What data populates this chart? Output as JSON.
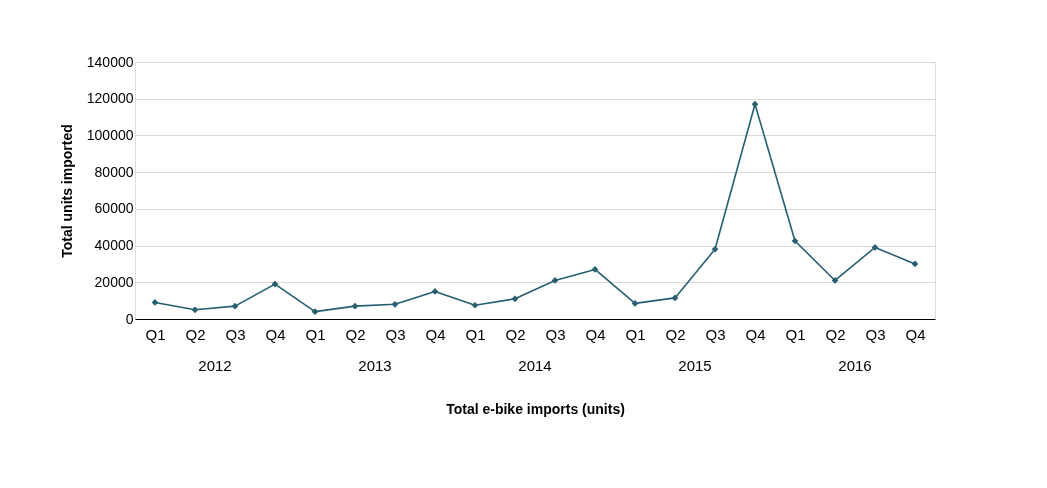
{
  "chart_data": {
    "type": "line",
    "xlabel": "Total e-bike imports (units)",
    "ylabel": "Total units imported",
    "categories": [
      "Q1",
      "Q2",
      "Q3",
      "Q4",
      "Q1",
      "Q2",
      "Q3",
      "Q4",
      "Q1",
      "Q2",
      "Q3",
      "Q4",
      "Q1",
      "Q2",
      "Q3",
      "Q4",
      "Q1",
      "Q2",
      "Q3",
      "Q4"
    ],
    "series": [
      {
        "color": "#265f6f",
        "values": [
          9000,
          5000,
          7000,
          19000,
          4000,
          7000,
          8000,
          15000,
          7500,
          11000,
          21000,
          27000,
          8500,
          11500,
          38000,
          117000,
          42500,
          21000,
          39000,
          30000
        ]
      }
    ],
    "annotations": [
      "2012",
      "2013",
      "2014",
      "2015",
      "2016"
    ],
    "ylim": [
      0,
      140000
    ],
    "yticks": [
      0,
      20000,
      40000,
      60000,
      80000,
      100000,
      120000,
      140000
    ],
    "grid": "y",
    "marker": "diamond",
    "line_style": "solid"
  }
}
